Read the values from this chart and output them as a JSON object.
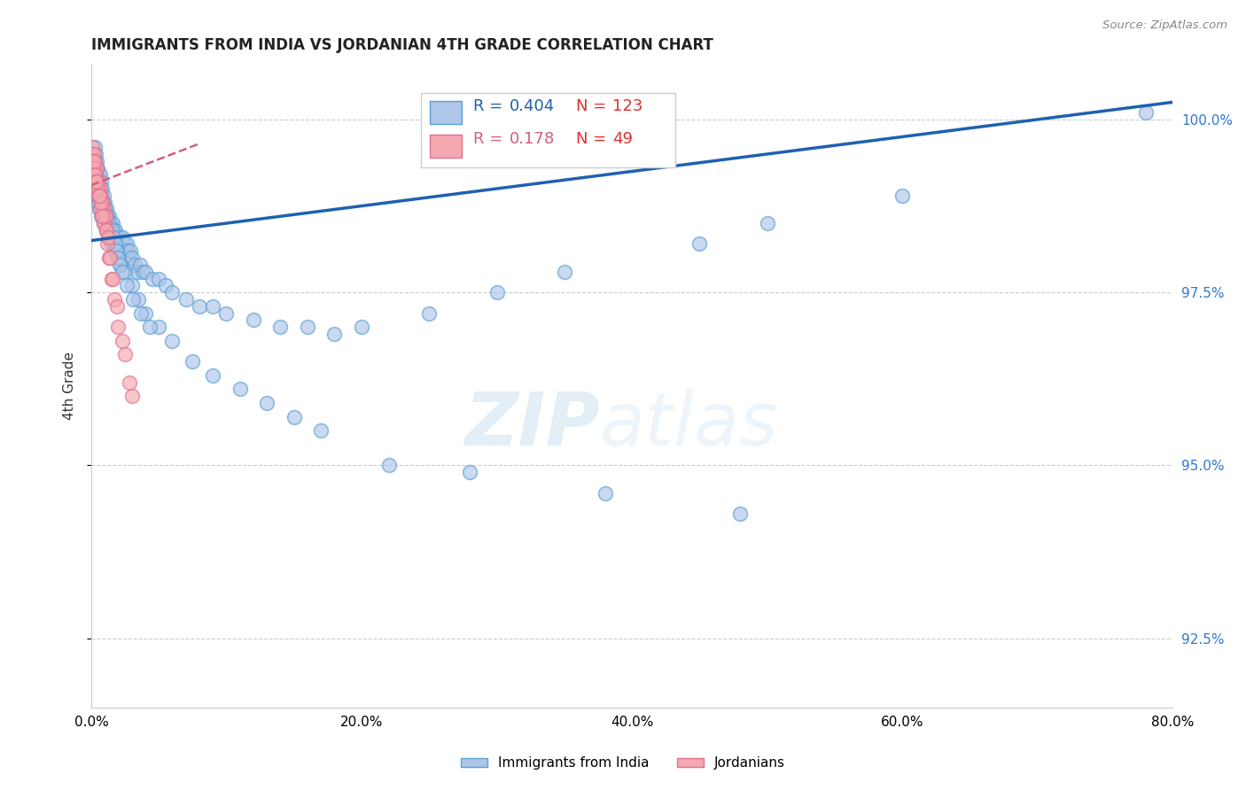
{
  "title": "IMMIGRANTS FROM INDIA VS JORDANIAN 4TH GRADE CORRELATION CHART",
  "source_text": "Source: ZipAtlas.com",
  "ylabel": "4th Grade",
  "xlim": [
    0.0,
    80.0
  ],
  "ylim": [
    91.5,
    100.8
  ],
  "yticks": [
    92.5,
    95.0,
    97.5,
    100.0
  ],
  "xticks": [
    0.0,
    20.0,
    40.0,
    60.0,
    80.0
  ],
  "xtick_labels": [
    "0.0%",
    "20.0%",
    "40.0%",
    "60.0%",
    "80.0%"
  ],
  "ytick_labels": [
    "92.5%",
    "95.0%",
    "97.5%",
    "100.0%"
  ],
  "blue_color": "#aec6e8",
  "pink_color": "#f4a8b0",
  "blue_edge_color": "#5a9fd4",
  "pink_edge_color": "#e07090",
  "blue_line_color": "#2060b0",
  "pink_line_color": "#d06080",
  "legend_blue_color": "#2060b0",
  "legend_pink_color": "#d06080",
  "legend_n_color": "#e03030",
  "watermark": "ZIPatlas",
  "blue_scatter_x": [
    0.1,
    0.15,
    0.2,
    0.25,
    0.3,
    0.35,
    0.4,
    0.45,
    0.5,
    0.55,
    0.6,
    0.65,
    0.7,
    0.75,
    0.8,
    0.85,
    0.9,
    0.95,
    1.0,
    1.05,
    1.1,
    1.15,
    1.2,
    1.25,
    1.3,
    1.35,
    1.4,
    1.45,
    1.5,
    1.55,
    1.6,
    1.65,
    1.7,
    1.75,
    1.8,
    1.85,
    1.9,
    1.95,
    2.0,
    2.1,
    2.2,
    2.3,
    2.4,
    2.5,
    2.6,
    2.7,
    2.8,
    2.9,
    3.0,
    3.2,
    3.4,
    3.6,
    3.8,
    4.0,
    4.5,
    5.0,
    5.5,
    6.0,
    7.0,
    8.0,
    9.0,
    10.0,
    12.0,
    14.0,
    16.0,
    18.0,
    20.0,
    25.0,
    30.0,
    35.0,
    45.0,
    50.0,
    60.0,
    78.0,
    0.2,
    0.3,
    0.4,
    0.5,
    0.6,
    0.7,
    0.8,
    0.9,
    1.0,
    1.1,
    1.2,
    1.3,
    1.4,
    1.5,
    1.6,
    1.7,
    1.8,
    1.9,
    2.0,
    2.2,
    2.5,
    3.0,
    3.5,
    4.0,
    5.0,
    6.0,
    7.5,
    9.0,
    11.0,
    13.0,
    15.0,
    17.0,
    22.0,
    28.0,
    38.0,
    48.0,
    0.25,
    0.35,
    0.45,
    0.55,
    0.65,
    0.75,
    0.85,
    0.95,
    1.05,
    1.15,
    1.25,
    1.35,
    1.45,
    1.55,
    1.65,
    1.75,
    1.85,
    1.95,
    2.1,
    2.3,
    2.6,
    3.1,
    3.7,
    4.3
  ],
  "blue_scatter_y": [
    99.2,
    99.5,
    99.4,
    99.3,
    99.6,
    99.5,
    99.4,
    99.3,
    99.2,
    99.1,
    99.0,
    99.2,
    99.1,
    98.9,
    99.0,
    98.8,
    98.9,
    98.7,
    98.8,
    98.7,
    98.6,
    98.7,
    98.6,
    98.5,
    98.6,
    98.5,
    98.4,
    98.5,
    98.4,
    98.5,
    98.3,
    98.4,
    98.3,
    98.4,
    98.3,
    98.2,
    98.3,
    98.2,
    98.3,
    98.3,
    98.2,
    98.3,
    98.2,
    98.1,
    98.2,
    98.1,
    98.0,
    98.1,
    98.0,
    97.9,
    97.8,
    97.9,
    97.8,
    97.8,
    97.7,
    97.7,
    97.6,
    97.5,
    97.4,
    97.3,
    97.3,
    97.2,
    97.1,
    97.0,
    97.0,
    96.9,
    97.0,
    97.2,
    97.5,
    97.8,
    98.2,
    98.5,
    98.9,
    100.1,
    99.1,
    99.0,
    98.9,
    98.8,
    98.7,
    98.6,
    98.7,
    98.5,
    98.6,
    98.4,
    98.5,
    98.3,
    98.4,
    98.2,
    98.3,
    98.1,
    98.2,
    98.1,
    98.0,
    97.9,
    97.8,
    97.6,
    97.4,
    97.2,
    97.0,
    96.8,
    96.5,
    96.3,
    96.1,
    95.9,
    95.7,
    95.5,
    95.0,
    94.9,
    94.6,
    94.3,
    99.3,
    99.2,
    99.1,
    99.0,
    98.9,
    98.8,
    98.7,
    98.6,
    98.5,
    98.6,
    98.5,
    98.4,
    98.3,
    98.4,
    98.3,
    98.2,
    98.1,
    98.0,
    97.9,
    97.8,
    97.6,
    97.4,
    97.2,
    97.0
  ],
  "pink_scatter_x": [
    0.05,
    0.1,
    0.15,
    0.2,
    0.25,
    0.3,
    0.35,
    0.4,
    0.45,
    0.5,
    0.55,
    0.6,
    0.65,
    0.7,
    0.75,
    0.8,
    0.85,
    0.9,
    0.95,
    1.0,
    1.1,
    1.2,
    1.3,
    1.5,
    1.7,
    2.0,
    2.5,
    3.0,
    0.15,
    0.25,
    0.35,
    0.45,
    0.55,
    0.65,
    0.75,
    0.85,
    0.95,
    1.05,
    1.15,
    1.25,
    1.4,
    1.6,
    1.9,
    2.3,
    2.8,
    0.2,
    0.4,
    0.6,
    0.8
  ],
  "pink_scatter_y": [
    99.5,
    99.6,
    99.4,
    99.5,
    99.3,
    99.4,
    99.2,
    99.3,
    99.1,
    99.0,
    99.1,
    98.9,
    99.0,
    98.8,
    98.9,
    98.7,
    98.8,
    98.6,
    98.7,
    98.5,
    98.4,
    98.2,
    98.0,
    97.7,
    97.4,
    97.0,
    96.6,
    96.0,
    99.3,
    99.2,
    99.1,
    99.0,
    98.9,
    98.7,
    98.8,
    98.6,
    98.5,
    98.6,
    98.4,
    98.3,
    98.0,
    97.7,
    97.3,
    96.8,
    96.2,
    99.4,
    99.1,
    98.9,
    98.6
  ],
  "blue_trend_x": [
    0.0,
    80.0
  ],
  "blue_trend_y": [
    98.25,
    100.25
  ],
  "pink_trend_x": [
    0.0,
    8.0
  ],
  "pink_trend_y": [
    99.05,
    99.65
  ]
}
